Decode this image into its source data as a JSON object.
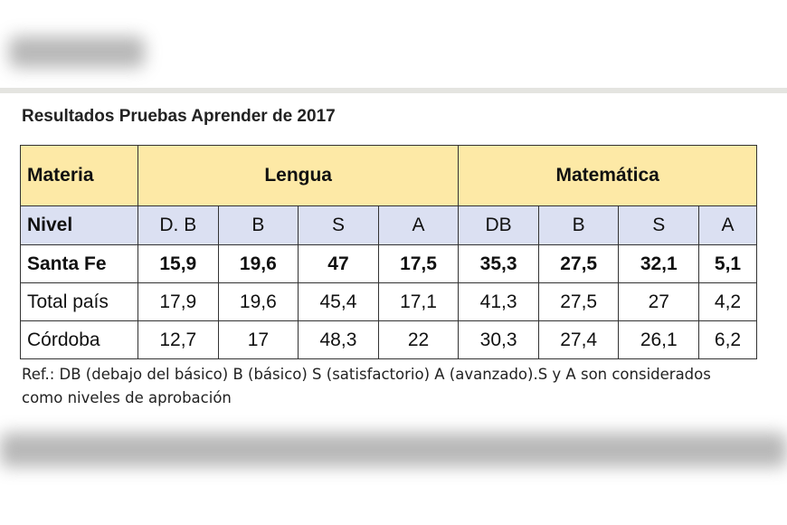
{
  "title": "Resultados Pruebas Aprender de 2017",
  "table": {
    "header": {
      "label": "Materia",
      "groups": [
        "Lengua",
        "Matemática"
      ]
    },
    "levels": {
      "label": "Nivel",
      "cells": [
        "D. B",
        "B",
        "S",
        "A",
        "DB",
        "B",
        "S",
        "A"
      ]
    },
    "rows": [
      {
        "name": "Santa Fe",
        "cells": [
          "15,9",
          "19,6",
          "47",
          "17,5",
          "35,3",
          "27,5",
          "32,1",
          "5,1"
        ]
      },
      {
        "name": "Total país",
        "cells": [
          "17,9",
          "19,6",
          "45,4",
          "17,1",
          "41,3",
          "27,5",
          "27",
          "4,2"
        ]
      },
      {
        "name": "Córdoba",
        "cells": [
          "12,7",
          "17",
          "48,3",
          "22",
          "30,3",
          "27,4",
          "26,1",
          "6,2"
        ]
      }
    ]
  },
  "note": "Ref.: DB (debajo del básico) B (básico) S (satisfactorio) A (avanzado).S y A son considerados como niveles de aprobación"
}
